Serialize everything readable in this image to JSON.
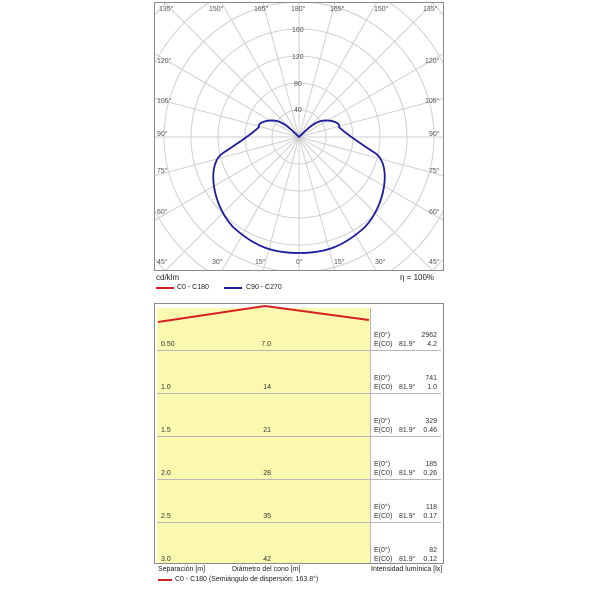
{
  "polar": {
    "top_angles": [
      "135°",
      "150°",
      "165°",
      "180°",
      "165°",
      "150°",
      "135°"
    ],
    "side_angles_left": [
      "120°",
      "105°",
      "90°",
      "75°",
      "60°",
      "45°"
    ],
    "side_angles_right": [
      "120°",
      "105°",
      "90°",
      "75°",
      "60°",
      "45°"
    ],
    "bottom_angles": [
      "30°",
      "15°",
      "0°",
      "15°",
      "30°"
    ],
    "radial_labels": [
      "160",
      "120",
      "80",
      "40"
    ],
    "unit_label": "cd/klm",
    "efficiency_label": "η = 100%",
    "legend": [
      {
        "label": "C0 - C180",
        "color": "#d42020"
      },
      {
        "label": "C90 - C270",
        "color": "#1c1c9c"
      }
    ],
    "curve_color": "#1c1c9c"
  },
  "cone": {
    "headers": {
      "separation": "Separación [m]",
      "diameter": "Diámetro del cono [m]",
      "intensity": "Intensidad lumínica [lx]"
    },
    "rows": [
      {
        "sep": "0.50",
        "dia": "7.0",
        "e0_label": "E(0°)",
        "e0": "2962",
        "ec0_label": "E(C0)",
        "ec0_angle": "81.9°",
        "ec0": "4.2"
      },
      {
        "sep": "1.0",
        "dia": "14",
        "e0_label": "E(0°)",
        "e0": "741",
        "ec0_label": "E(C0)",
        "ec0_angle": "81.9°",
        "ec0": "1.0"
      },
      {
        "sep": "1.5",
        "dia": "21",
        "e0_label": "E(0°)",
        "e0": "329",
        "ec0_label": "E(C0)",
        "ec0_angle": "81.9°",
        "ec0": "0.46"
      },
      {
        "sep": "2.0",
        "dia": "28",
        "e0_label": "E(0°)",
        "e0": "185",
        "ec0_label": "E(C0)",
        "ec0_angle": "81.9°",
        "ec0": "0.26"
      },
      {
        "sep": "2.5",
        "dia": "35",
        "e0_label": "E(0°)",
        "e0": "118",
        "ec0_label": "E(C0)",
        "ec0_angle": "81.9°",
        "ec0": "0.17"
      },
      {
        "sep": "3.0",
        "dia": "42",
        "e0_label": "E(0°)",
        "e0": "82",
        "ec0_label": "E(C0)",
        "ec0_angle": "81.9°",
        "ec0": "0.12"
      }
    ],
    "legend_label": "C0 - C180 (Semiángulo de dispersión: 163.8°)",
    "legend_color": "#d42020",
    "fill_color": "#fbf9b0"
  }
}
